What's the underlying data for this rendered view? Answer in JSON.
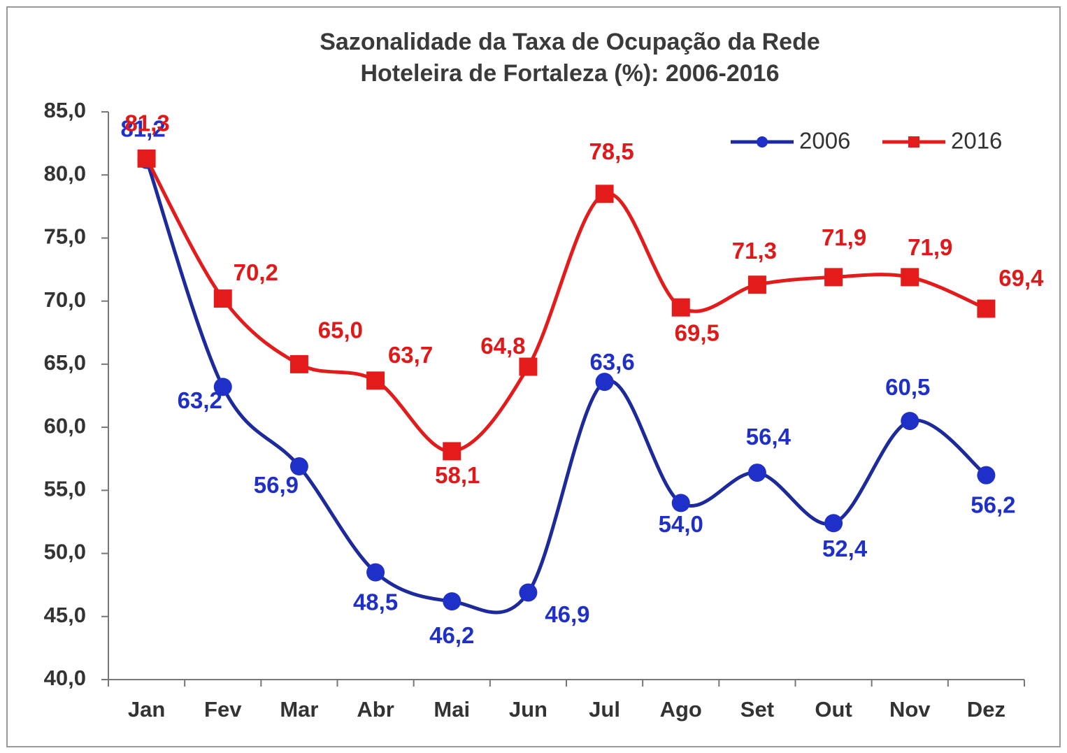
{
  "chart_data": {
    "type": "line",
    "title": [
      "Sazonalidade da Taxa de Ocupação da Rede",
      "Hoteleira de Fortaleza (%):  2006-2016"
    ],
    "categories": [
      "Jan",
      "Fev",
      "Mar",
      "Abr",
      "Mai",
      "Jun",
      "Jul",
      "Ago",
      "Set",
      "Out",
      "Nov",
      "Dez"
    ],
    "series": [
      {
        "name": "2006",
        "color": "#1c2a9c",
        "label_color": "#1f30c8",
        "marker": "circle",
        "values": [
          81.2,
          63.2,
          56.9,
          48.5,
          46.2,
          46.9,
          63.6,
          54.0,
          56.4,
          52.4,
          60.5,
          56.2
        ],
        "value_labels": [
          "81,2",
          "63,2",
          "56,9",
          "48,5",
          "46,2",
          "46,9",
          "63,6",
          "54,0",
          "56,4",
          "52,4",
          "60,5",
          "56,2"
        ]
      },
      {
        "name": "2016",
        "color": "#e31b1b",
        "label_color": "#e01818",
        "marker": "square",
        "values": [
          81.3,
          70.2,
          65.0,
          63.7,
          58.1,
          64.8,
          78.5,
          69.5,
          71.3,
          71.9,
          71.9,
          69.4
        ],
        "value_labels": [
          "81,3",
          "70,2",
          "65,0",
          "63,7",
          "58,1",
          "64,8",
          "78,5",
          "69,5",
          "71,3",
          "71,9",
          "71,9",
          "69,4"
        ]
      }
    ],
    "ylim": [
      40,
      85
    ],
    "yticks": [
      {
        "value": 40,
        "label": "40,0"
      },
      {
        "value": 45,
        "label": "45,0"
      },
      {
        "value": 50,
        "label": "50,0"
      },
      {
        "value": 55,
        "label": "55,0"
      },
      {
        "value": 60,
        "label": "60,0"
      },
      {
        "value": 65,
        "label": "65,0"
      },
      {
        "value": 70,
        "label": "70,0"
      },
      {
        "value": 75,
        "label": "75,0"
      },
      {
        "value": 80,
        "label": "80,0"
      },
      {
        "value": 85,
        "label": "85,0"
      }
    ],
    "grid": false,
    "smooth": true,
    "legend": "top-right"
  }
}
